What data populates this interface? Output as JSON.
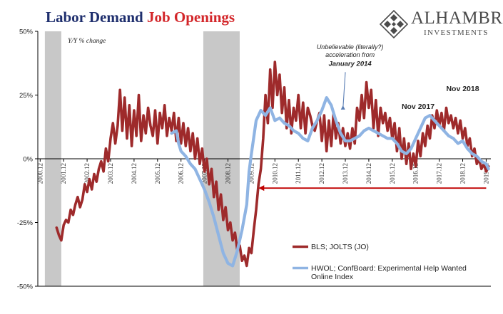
{
  "title": {
    "part1": "Labor Demand",
    "part2": "Job Openings"
  },
  "brand": {
    "name": "ALHAMBRA",
    "sub": "INVESTMENTS"
  },
  "colors": {
    "jolts": "#9e2a2b",
    "hwol": "#8fb4e3",
    "recession": "#c8c8c8",
    "arrow": "#c00000",
    "title_blue": "#1f2f6e",
    "title_red": "#d3262a"
  },
  "chart_data": {
    "type": "line",
    "subtitle": "Y/Y % change",
    "y_ticks": [
      "50%",
      "25%",
      "0%",
      "-25%",
      "-50%"
    ],
    "ylim": [
      -50,
      50
    ],
    "x_tick_labels": [
      "2000.12",
      "2001.12",
      "2002.12",
      "2003.12",
      "2004.12",
      "2005.12",
      "2006.12",
      "2007.12",
      "2008.12",
      "2009.12",
      "2010.12",
      "2011.12",
      "2012.12",
      "2013.12",
      "2014.12",
      "2015.12",
      "2016.12",
      "2017.12",
      "2018.12",
      "2019.12"
    ],
    "xlim": [
      2000.9,
      2020.2
    ],
    "recessions": [
      [
        2001.2,
        2001.9
      ],
      [
        2007.95,
        2009.5
      ]
    ],
    "series": [
      {
        "name": "BLS; JOLTS (JO)",
        "points": [
          [
            2001.7,
            -27
          ],
          [
            2001.8,
            -30
          ],
          [
            2001.9,
            -32
          ],
          [
            2002.0,
            -26
          ],
          [
            2002.1,
            -24
          ],
          [
            2002.2,
            -25
          ],
          [
            2002.3,
            -20
          ],
          [
            2002.4,
            -22
          ],
          [
            2002.5,
            -18
          ],
          [
            2002.6,
            -15
          ],
          [
            2002.7,
            -19
          ],
          [
            2002.8,
            -16
          ],
          [
            2002.9,
            -10
          ],
          [
            2003.0,
            -13
          ],
          [
            2003.1,
            -8
          ],
          [
            2003.2,
            -12
          ],
          [
            2003.3,
            -6
          ],
          [
            2003.4,
            -9
          ],
          [
            2003.5,
            -4
          ],
          [
            2003.6,
            -1
          ],
          [
            2003.7,
            -5
          ],
          [
            2003.8,
            4
          ],
          [
            2003.9,
            -1
          ],
          [
            2004.0,
            8
          ],
          [
            2004.1,
            14
          ],
          [
            2004.2,
            6
          ],
          [
            2004.3,
            13
          ],
          [
            2004.4,
            27
          ],
          [
            2004.5,
            11
          ],
          [
            2004.6,
            24
          ],
          [
            2004.7,
            8
          ],
          [
            2004.8,
            21
          ],
          [
            2004.9,
            5
          ],
          [
            2005.0,
            19
          ],
          [
            2005.1,
            9
          ],
          [
            2005.2,
            25
          ],
          [
            2005.3,
            7
          ],
          [
            2005.4,
            17
          ],
          [
            2005.5,
            10
          ],
          [
            2005.6,
            20
          ],
          [
            2005.7,
            13
          ],
          [
            2005.8,
            9
          ],
          [
            2005.9,
            19
          ],
          [
            2006.0,
            6
          ],
          [
            2006.1,
            18
          ],
          [
            2006.2,
            12
          ],
          [
            2006.3,
            21
          ],
          [
            2006.4,
            9
          ],
          [
            2006.5,
            16
          ],
          [
            2006.6,
            11
          ],
          [
            2006.7,
            18
          ],
          [
            2006.8,
            7
          ],
          [
            2006.9,
            16
          ],
          [
            2007.0,
            6
          ],
          [
            2007.1,
            14
          ],
          [
            2007.2,
            5
          ],
          [
            2007.3,
            12
          ],
          [
            2007.4,
            3
          ],
          [
            2007.5,
            10
          ],
          [
            2007.6,
            0
          ],
          [
            2007.7,
            8
          ],
          [
            2007.8,
            -2
          ],
          [
            2007.9,
            4
          ],
          [
            2008.0,
            -5
          ],
          [
            2008.1,
            0
          ],
          [
            2008.2,
            -10
          ],
          [
            2008.3,
            -4
          ],
          [
            2008.4,
            -15
          ],
          [
            2008.5,
            -9
          ],
          [
            2008.6,
            -20
          ],
          [
            2008.7,
            -14
          ],
          [
            2008.8,
            -24
          ],
          [
            2008.9,
            -19
          ],
          [
            2009.0,
            -28
          ],
          [
            2009.1,
            -25
          ],
          [
            2009.2,
            -32
          ],
          [
            2009.3,
            -29
          ],
          [
            2009.4,
            -36
          ],
          [
            2009.5,
            -34
          ],
          [
            2009.6,
            -40
          ],
          [
            2009.7,
            -38
          ],
          [
            2009.8,
            -42
          ],
          [
            2009.9,
            -35
          ],
          [
            2010.0,
            -37
          ],
          [
            2010.1,
            -28
          ],
          [
            2010.2,
            -20
          ],
          [
            2010.3,
            -10
          ],
          [
            2010.4,
            -4
          ],
          [
            2010.5,
            8
          ],
          [
            2010.6,
            25
          ],
          [
            2010.7,
            14
          ],
          [
            2010.8,
            35
          ],
          [
            2010.9,
            20
          ],
          [
            2011.0,
            38
          ],
          [
            2011.1,
            25
          ],
          [
            2011.2,
            33
          ],
          [
            2011.3,
            18
          ],
          [
            2011.4,
            28
          ],
          [
            2011.5,
            12
          ],
          [
            2011.6,
            23
          ],
          [
            2011.7,
            10
          ],
          [
            2011.8,
            20
          ],
          [
            2011.9,
            15
          ],
          [
            2012.0,
            25
          ],
          [
            2012.1,
            12
          ],
          [
            2012.2,
            22
          ],
          [
            2012.3,
            10
          ],
          [
            2012.4,
            20
          ],
          [
            2012.5,
            17
          ],
          [
            2012.6,
            13
          ],
          [
            2012.7,
            11
          ],
          [
            2012.8,
            15
          ],
          [
            2012.9,
            18
          ],
          [
            2013.0,
            7
          ],
          [
            2013.1,
            17
          ],
          [
            2013.2,
            3
          ],
          [
            2013.3,
            15
          ],
          [
            2013.4,
            5
          ],
          [
            2013.5,
            18
          ],
          [
            2013.6,
            8
          ],
          [
            2013.7,
            14
          ],
          [
            2013.8,
            6
          ],
          [
            2013.9,
            12
          ],
          [
            2014.0,
            5
          ],
          [
            2014.1,
            10
          ],
          [
            2014.2,
            4
          ],
          [
            2014.3,
            12
          ],
          [
            2014.4,
            6
          ],
          [
            2014.5,
            20
          ],
          [
            2014.6,
            15
          ],
          [
            2014.7,
            25
          ],
          [
            2014.8,
            16
          ],
          [
            2014.9,
            30
          ],
          [
            2015.0,
            20
          ],
          [
            2015.1,
            27
          ],
          [
            2015.2,
            12
          ],
          [
            2015.3,
            23
          ],
          [
            2015.4,
            9
          ],
          [
            2015.5,
            20
          ],
          [
            2015.6,
            14
          ],
          [
            2015.7,
            18
          ],
          [
            2015.8,
            11
          ],
          [
            2015.9,
            16
          ],
          [
            2016.0,
            8
          ],
          [
            2016.1,
            14
          ],
          [
            2016.2,
            3
          ],
          [
            2016.3,
            12
          ],
          [
            2016.4,
            0
          ],
          [
            2016.5,
            8
          ],
          [
            2016.6,
            -2
          ],
          [
            2016.7,
            6
          ],
          [
            2016.8,
            -4
          ],
          [
            2016.9,
            2
          ],
          [
            2017.0,
            -3
          ],
          [
            2017.1,
            7
          ],
          [
            2017.2,
            1
          ],
          [
            2017.3,
            10
          ],
          [
            2017.4,
            5
          ],
          [
            2017.5,
            13
          ],
          [
            2017.6,
            8
          ],
          [
            2017.7,
            17
          ],
          [
            2017.8,
            12
          ],
          [
            2017.9,
            19
          ],
          [
            2018.0,
            13
          ],
          [
            2018.1,
            18
          ],
          [
            2018.2,
            11
          ],
          [
            2018.3,
            20
          ],
          [
            2018.4,
            14
          ],
          [
            2018.5,
            17
          ],
          [
            2018.6,
            12
          ],
          [
            2018.7,
            16
          ],
          [
            2018.8,
            10
          ],
          [
            2018.9,
            15
          ],
          [
            2019.0,
            8
          ],
          [
            2019.1,
            12
          ],
          [
            2019.2,
            5
          ],
          [
            2019.3,
            8
          ],
          [
            2019.4,
            1
          ],
          [
            2019.5,
            4
          ],
          [
            2019.6,
            -2
          ],
          [
            2019.7,
            0
          ],
          [
            2019.8,
            -4
          ],
          [
            2019.9,
            -2
          ],
          [
            2020.0,
            -5
          ],
          [
            2020.1,
            -3
          ]
        ]
      },
      {
        "name": "HWOL; ConfBoard: Experimental Help Wanted Online Index",
        "points": [
          [
            2006.6,
            10
          ],
          [
            2006.8,
            11
          ],
          [
            2006.9,
            6
          ],
          [
            2007.0,
            3
          ],
          [
            2007.2,
            1
          ],
          [
            2007.4,
            -2
          ],
          [
            2007.6,
            -4
          ],
          [
            2007.8,
            -8
          ],
          [
            2008.0,
            -12
          ],
          [
            2008.2,
            -17
          ],
          [
            2008.4,
            -23
          ],
          [
            2008.6,
            -30
          ],
          [
            2008.8,
            -37
          ],
          [
            2009.0,
            -41
          ],
          [
            2009.2,
            -42
          ],
          [
            2009.4,
            -36
          ],
          [
            2009.6,
            -28
          ],
          [
            2009.8,
            -18
          ],
          [
            2009.9,
            -5
          ],
          [
            2010.0,
            2
          ],
          [
            2010.2,
            15
          ],
          [
            2010.4,
            19
          ],
          [
            2010.6,
            17
          ],
          [
            2010.8,
            20
          ],
          [
            2011.0,
            15
          ],
          [
            2011.2,
            16
          ],
          [
            2011.4,
            14
          ],
          [
            2011.6,
            13
          ],
          [
            2011.8,
            11
          ],
          [
            2012.0,
            10
          ],
          [
            2012.2,
            8
          ],
          [
            2012.4,
            7
          ],
          [
            2012.6,
            12
          ],
          [
            2012.8,
            15
          ],
          [
            2013.0,
            19
          ],
          [
            2013.2,
            24
          ],
          [
            2013.4,
            21
          ],
          [
            2013.6,
            15
          ],
          [
            2013.8,
            10
          ],
          [
            2014.0,
            7
          ],
          [
            2014.2,
            7
          ],
          [
            2014.4,
            8
          ],
          [
            2014.6,
            9
          ],
          [
            2014.8,
            11
          ],
          [
            2015.0,
            12
          ],
          [
            2015.2,
            11
          ],
          [
            2015.4,
            10
          ],
          [
            2015.6,
            9
          ],
          [
            2015.8,
            8
          ],
          [
            2016.0,
            8
          ],
          [
            2016.2,
            6
          ],
          [
            2016.4,
            3
          ],
          [
            2016.6,
            2
          ],
          [
            2016.8,
            4
          ],
          [
            2017.0,
            8
          ],
          [
            2017.2,
            12
          ],
          [
            2017.4,
            16
          ],
          [
            2017.6,
            17
          ],
          [
            2017.8,
            15
          ],
          [
            2018.0,
            13
          ],
          [
            2018.2,
            11
          ],
          [
            2018.4,
            9
          ],
          [
            2018.6,
            8
          ],
          [
            2018.8,
            6
          ],
          [
            2019.0,
            7
          ],
          [
            2019.2,
            4
          ],
          [
            2019.4,
            2
          ],
          [
            2019.6,
            1
          ],
          [
            2019.8,
            -1
          ],
          [
            2020.0,
            -2
          ],
          [
            2020.1,
            -4
          ]
        ]
      }
    ],
    "annotations": [
      {
        "text": "Unbelievable (literally?)",
        "style": "italic",
        "x": 2014.2,
        "y": 43
      },
      {
        "text": "acceleration from",
        "style": "italic",
        "x": 2014.2,
        "y": 40
      },
      {
        "text": "January 2014",
        "style": "bold-italic",
        "x": 2014.2,
        "y": 36.5
      },
      {
        "text": "Nov 2017",
        "style": "bold",
        "x": 2017.1,
        "y": 19.5
      },
      {
        "text": "Nov 2018",
        "style": "bold",
        "x": 2019.0,
        "y": 26.5
      }
    ],
    "pointer_arrow": {
      "from": [
        2014.0,
        34
      ],
      "to": [
        2013.9,
        21
      ]
    },
    "range_arrow": {
      "from": [
        2020.0,
        -11.5
      ],
      "to": [
        2010.3,
        -11.5
      ]
    },
    "legend_position": "bottom-right"
  }
}
